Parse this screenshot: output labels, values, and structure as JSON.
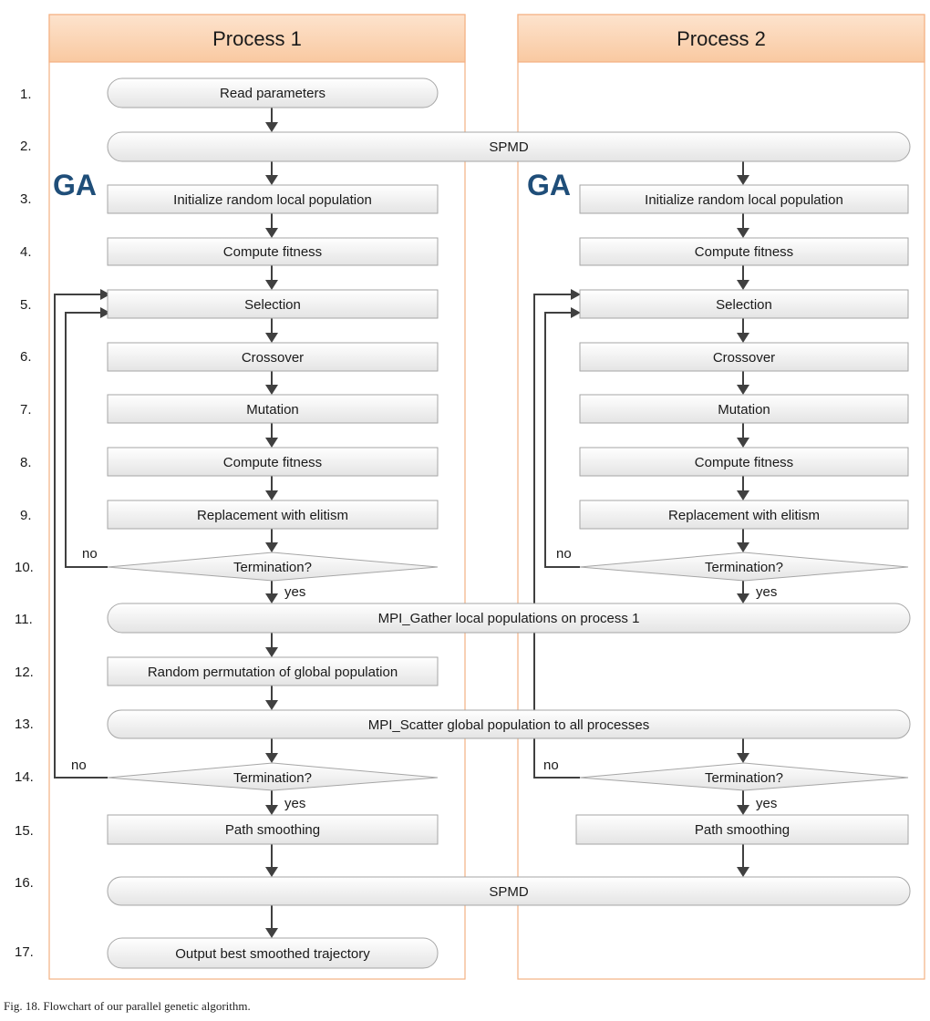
{
  "lanes": [
    "Process 1",
    "Process 2"
  ],
  "step_numbers": [
    "1.",
    "2.",
    "3.",
    "4.",
    "5.",
    "6.",
    "7.",
    "8.",
    "9.",
    "10.",
    "11.",
    "12.",
    "13.",
    "14.",
    "15.",
    "16.",
    "17."
  ],
  "ga_label": "GA",
  "nodes": {
    "read_parameters": "Read parameters",
    "spmd_start": "SPMD",
    "init_population": "Initialize random local population",
    "compute_fitness_1": "Compute fitness",
    "selection": "Selection",
    "crossover": "Crossover",
    "mutation": "Mutation",
    "compute_fitness_2": "Compute fitness",
    "replacement": "Replacement with elitism",
    "termination_local": "Termination?",
    "mpi_gather": "MPI_Gather local populations on process 1",
    "random_permutation": "Random permutation of global population",
    "mpi_scatter": "MPI_Scatter global population to all processes",
    "termination_global": "Termination?",
    "path_smoothing": "Path smoothing",
    "spmd_end": "SPMD",
    "output": "Output best smoothed trajectory"
  },
  "edge_labels": {
    "yes": "yes",
    "no": "no"
  },
  "caption": "Fig. 18.   Flowchart of our parallel genetic algorithm.",
  "colors": {
    "lane_header_fill": "#fbd5b5",
    "lane_border": "#f4b183",
    "box_border": "#a6a6a6",
    "box_fill_top": "#ffffff",
    "box_fill_bottom": "#e6e6e6",
    "arrow": "#404040",
    "ga": "#1f4e79"
  }
}
